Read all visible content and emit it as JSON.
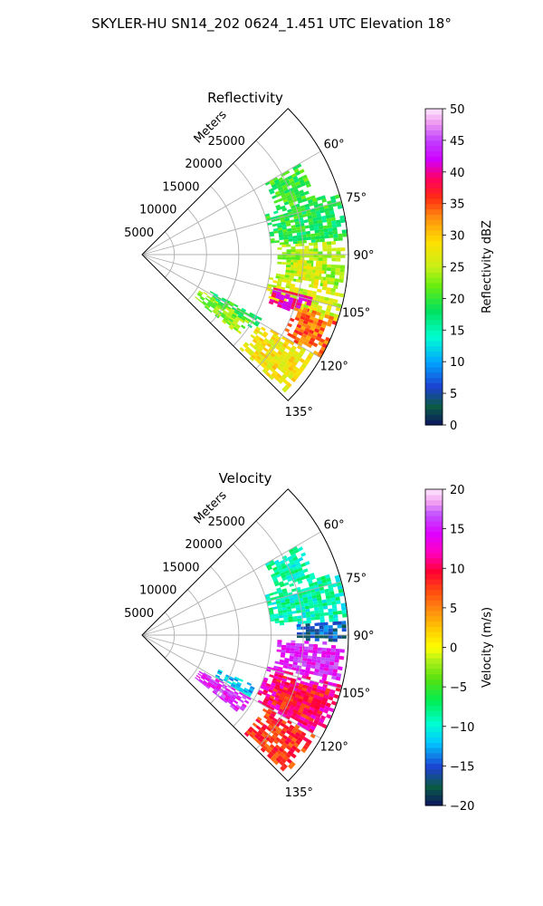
{
  "figure": {
    "title": "SKYLER-HU  SN14_202  0624_1.451 UTC Elevation 18°"
  },
  "chart_data": [
    {
      "type": "heatmap",
      "projection": "polar-sector",
      "title": "Reflectivity",
      "radial_axis_label": "Meters",
      "range_ticks": [
        5000,
        10000,
        15000,
        20000,
        25000
      ],
      "range_max": 32000,
      "azimuth_ticks": [
        "60°",
        "75°",
        "90°",
        "105°",
        "120°",
        "135°"
      ],
      "azimuth_range": [
        45,
        135
      ],
      "colorbar": {
        "label": "Reflectivity dBZ",
        "min": 0,
        "max": 50,
        "ticks": [
          "0",
          "5",
          "10",
          "15",
          "20",
          "25",
          "30",
          "35",
          "40",
          "45",
          "50"
        ]
      },
      "echo_regions": [
        {
          "az": [
            60,
            72
          ],
          "r": [
            22000,
            28000
          ],
          "level": 20
        },
        {
          "az": [
            72,
            86
          ],
          "r": [
            20000,
            31500
          ],
          "level": 19
        },
        {
          "az": [
            86,
            100
          ],
          "r": [
            21000,
            31500
          ],
          "level": 24
        },
        {
          "az": [
            92,
            100
          ],
          "r": [
            23500,
            28500
          ],
          "level": 27
        },
        {
          "az": [
            100,
            110
          ],
          "r": [
            20000,
            31500
          ],
          "level": 26
        },
        {
          "az": [
            104,
            111
          ],
          "r": [
            21000,
            27000
          ],
          "level": 40
        },
        {
          "az": [
            108,
            120
          ],
          "r": [
            25000,
            31500
          ],
          "level": 34
        },
        {
          "az": [
            120,
            134
          ],
          "r": [
            21000,
            30500
          ],
          "level": 28
        },
        {
          "az": [
            118,
            124
          ],
          "r": [
            12000,
            20500
          ],
          "level": 19
        },
        {
          "az": [
            121,
            130
          ],
          "r": [
            10500,
            19000
          ],
          "level": 23
        }
      ]
    },
    {
      "type": "heatmap",
      "projection": "polar-sector",
      "title": "Velocity",
      "radial_axis_label": "Meters",
      "range_ticks": [
        5000,
        10000,
        15000,
        20000,
        25000
      ],
      "range_max": 32000,
      "azimuth_ticks": [
        "60°",
        "75°",
        "90°",
        "105°",
        "120°",
        "135°"
      ],
      "azimuth_range": [
        45,
        135
      ],
      "colorbar": {
        "label": "Velocity (m/s)",
        "min": -20,
        "max": 20,
        "ticks": [
          "−20",
          "−15",
          "−10",
          "−5",
          "0",
          "5",
          "10",
          "15",
          "20"
        ]
      },
      "echo_regions": [
        {
          "az": [
            60,
            72
          ],
          "r": [
            22000,
            28000
          ],
          "level": -9
        },
        {
          "az": [
            72,
            86
          ],
          "r": [
            20000,
            31500
          ],
          "level": -9
        },
        {
          "az": [
            86,
            92
          ],
          "r": [
            24000,
            31500
          ],
          "level": -15
        },
        {
          "az": [
            92,
            104
          ],
          "r": [
            21000,
            31500
          ],
          "level": 15
        },
        {
          "az": [
            104,
            120
          ],
          "r": [
            20000,
            31500
          ],
          "level": 12
        },
        {
          "az": [
            106,
            118
          ],
          "r": [
            22000,
            30000
          ],
          "level": 9
        },
        {
          "az": [
            120,
            134
          ],
          "r": [
            22000,
            30500
          ],
          "level": 8
        },
        {
          "az": [
            114,
            120
          ],
          "r": [
            13000,
            19000
          ],
          "level": -12
        },
        {
          "az": [
            120,
            129
          ],
          "r": [
            10500,
            19000
          ],
          "level": 15
        }
      ]
    }
  ]
}
